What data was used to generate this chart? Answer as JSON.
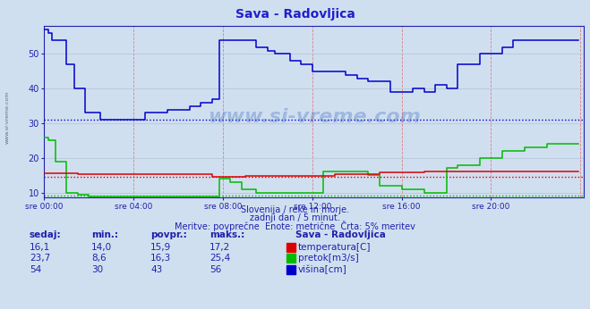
{
  "title": "Sava - Radovljica",
  "bg_color": "#d0dff0",
  "plot_bg_color": "#d0dff0",
  "vgrid_color": "#e08080",
  "hgrid_color": "#b8c8d8",
  "ylim": [
    8.5,
    58
  ],
  "yticks": [
    10,
    20,
    30,
    40,
    50
  ],
  "xlim": [
    0,
    288
  ],
  "xtick_positions": [
    0,
    48,
    96,
    144,
    192,
    240
  ],
  "xtick_labels": [
    "sre 00:00",
    "sre 04:00",
    "sre 08:00",
    "sre 12:00",
    "sre 16:00",
    "sre 20:00"
  ],
  "title_color": "#2020cc",
  "axis_color": "#2020aa",
  "tick_color": "#2020aa",
  "subtitle1": "Slovenija / reke in morje.",
  "subtitle2": "zadnji dan / 5 minut.",
  "subtitle3": "Meritve: povprečne  Enote: metrične  Črta: 5% meritev",
  "legend_title": "Sava - Radovljica",
  "legend_items": [
    {
      "label": "temperatura[C]",
      "color": "#dd0000"
    },
    {
      "label": "pretok[m3/s]",
      "color": "#00bb00"
    },
    {
      "label": "višina[cm]",
      "color": "#0000cc"
    }
  ],
  "table_headers": [
    "sedaj:",
    "min.:",
    "povpr.:",
    "maks.:"
  ],
  "table_rows": [
    [
      "16,1",
      "14,0",
      "15,9",
      "17,2"
    ],
    [
      "23,7",
      "8,6",
      "16,3",
      "25,4"
    ],
    [
      "54",
      "30",
      "43",
      "56"
    ]
  ],
  "avg_blue": 31.0,
  "avg_red": 14.6,
  "avg_green": 9.2,
  "temp_color": "#dd0000",
  "flow_color": "#00bb00",
  "height_color": "#0000cc",
  "watermark": "www.si-vreme.com",
  "watermark_color": "#3060c0"
}
